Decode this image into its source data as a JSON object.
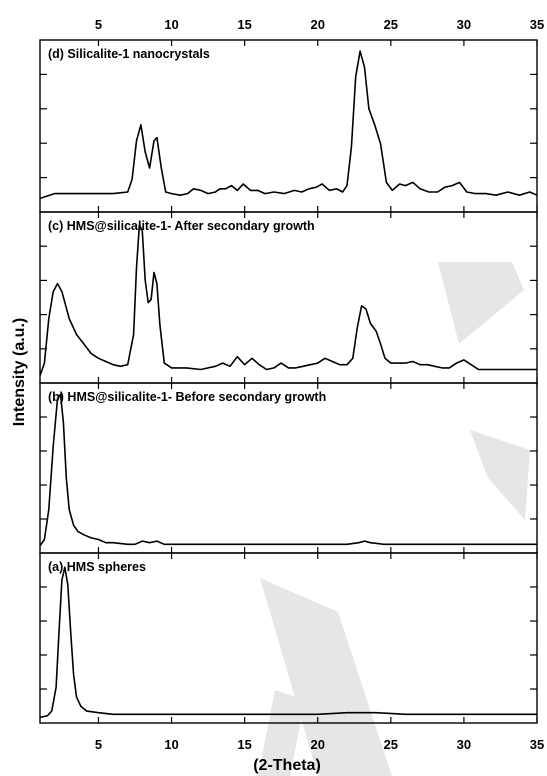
{
  "chart_data": {
    "type": "line",
    "xlabel": "(2-Theta)",
    "ylabel": "Intensity (a.u.)",
    "xlim": [
      1,
      35
    ],
    "x_ticks": [
      5,
      10,
      15,
      20,
      25,
      30,
      35
    ],
    "x_tick_labels": [
      "5",
      "10",
      "15",
      "20",
      "25",
      "30",
      "35"
    ],
    "panels": [
      {
        "label": "(d) Silicalite-1 nanocrystals",
        "ylim": [
          0,
          1
        ],
        "points": [
          [
            1.0,
            0.06
          ],
          [
            2.0,
            0.09
          ],
          [
            3.0,
            0.09
          ],
          [
            4.0,
            0.09
          ],
          [
            5.0,
            0.09
          ],
          [
            6.0,
            0.09
          ],
          [
            7.0,
            0.1
          ],
          [
            7.3,
            0.18
          ],
          [
            7.6,
            0.42
          ],
          [
            7.9,
            0.52
          ],
          [
            8.2,
            0.35
          ],
          [
            8.5,
            0.25
          ],
          [
            8.8,
            0.42
          ],
          [
            9.0,
            0.44
          ],
          [
            9.3,
            0.25
          ],
          [
            9.6,
            0.1
          ],
          [
            10.0,
            0.09
          ],
          [
            10.6,
            0.08
          ],
          [
            11.1,
            0.09
          ],
          [
            11.5,
            0.12
          ],
          [
            12.0,
            0.11
          ],
          [
            12.5,
            0.09
          ],
          [
            13.0,
            0.1
          ],
          [
            13.3,
            0.12
          ],
          [
            13.7,
            0.12
          ],
          [
            14.1,
            0.14
          ],
          [
            14.5,
            0.11
          ],
          [
            14.9,
            0.15
          ],
          [
            15.4,
            0.11
          ],
          [
            15.9,
            0.11
          ],
          [
            16.4,
            0.09
          ],
          [
            17.0,
            0.1
          ],
          [
            17.7,
            0.09
          ],
          [
            18.4,
            0.11
          ],
          [
            18.9,
            0.1
          ],
          [
            19.4,
            0.12
          ],
          [
            19.9,
            0.13
          ],
          [
            20.3,
            0.15
          ],
          [
            20.8,
            0.11
          ],
          [
            21.3,
            0.12
          ],
          [
            21.7,
            0.1
          ],
          [
            22.0,
            0.14
          ],
          [
            22.3,
            0.38
          ],
          [
            22.6,
            0.82
          ],
          [
            22.9,
            0.98
          ],
          [
            23.2,
            0.88
          ],
          [
            23.5,
            0.62
          ],
          [
            23.9,
            0.52
          ],
          [
            24.3,
            0.4
          ],
          [
            24.7,
            0.16
          ],
          [
            25.1,
            0.11
          ],
          [
            25.6,
            0.15
          ],
          [
            26.0,
            0.14
          ],
          [
            26.5,
            0.16
          ],
          [
            27.0,
            0.12
          ],
          [
            27.6,
            0.1
          ],
          [
            28.2,
            0.1
          ],
          [
            28.7,
            0.13
          ],
          [
            29.2,
            0.14
          ],
          [
            29.7,
            0.16
          ],
          [
            30.2,
            0.1
          ],
          [
            30.8,
            0.09
          ],
          [
            31.5,
            0.09
          ],
          [
            32.2,
            0.08
          ],
          [
            33.0,
            0.1
          ],
          [
            33.8,
            0.08
          ],
          [
            34.5,
            0.1
          ],
          [
            35.0,
            0.08
          ]
        ]
      },
      {
        "label": "(c) HMS@silicalite-1- After secondary growth",
        "ylim": [
          0,
          1
        ],
        "points": [
          [
            1.0,
            0.02
          ],
          [
            1.3,
            0.1
          ],
          [
            1.6,
            0.38
          ],
          [
            1.9,
            0.55
          ],
          [
            2.2,
            0.6
          ],
          [
            2.5,
            0.55
          ],
          [
            3.0,
            0.38
          ],
          [
            3.5,
            0.28
          ],
          [
            4.0,
            0.22
          ],
          [
            4.5,
            0.16
          ],
          [
            5.0,
            0.13
          ],
          [
            5.5,
            0.11
          ],
          [
            6.0,
            0.09
          ],
          [
            6.5,
            0.08
          ],
          [
            7.0,
            0.09
          ],
          [
            7.4,
            0.28
          ],
          [
            7.6,
            0.7
          ],
          [
            7.8,
            0.97
          ],
          [
            8.0,
            0.93
          ],
          [
            8.2,
            0.62
          ],
          [
            8.4,
            0.48
          ],
          [
            8.6,
            0.5
          ],
          [
            8.8,
            0.67
          ],
          [
            9.0,
            0.6
          ],
          [
            9.2,
            0.34
          ],
          [
            9.5,
            0.1
          ],
          [
            10.0,
            0.07
          ],
          [
            11.0,
            0.07
          ],
          [
            12.0,
            0.06
          ],
          [
            12.5,
            0.07
          ],
          [
            13.0,
            0.08
          ],
          [
            13.5,
            0.1
          ],
          [
            14.0,
            0.08
          ],
          [
            14.5,
            0.14
          ],
          [
            15.0,
            0.09
          ],
          [
            15.5,
            0.13
          ],
          [
            16.0,
            0.09
          ],
          [
            16.5,
            0.06
          ],
          [
            17.0,
            0.07
          ],
          [
            17.5,
            0.1
          ],
          [
            18.0,
            0.07
          ],
          [
            18.5,
            0.07
          ],
          [
            19.0,
            0.08
          ],
          [
            19.5,
            0.09
          ],
          [
            20.0,
            0.1
          ],
          [
            20.5,
            0.13
          ],
          [
            21.0,
            0.11
          ],
          [
            21.5,
            0.09
          ],
          [
            22.0,
            0.09
          ],
          [
            22.4,
            0.13
          ],
          [
            22.7,
            0.32
          ],
          [
            23.0,
            0.46
          ],
          [
            23.3,
            0.44
          ],
          [
            23.6,
            0.35
          ],
          [
            24.0,
            0.3
          ],
          [
            24.3,
            0.22
          ],
          [
            24.6,
            0.13
          ],
          [
            25.0,
            0.1
          ],
          [
            25.5,
            0.1
          ],
          [
            26.0,
            0.1
          ],
          [
            26.5,
            0.11
          ],
          [
            27.0,
            0.09
          ],
          [
            27.5,
            0.09
          ],
          [
            28.0,
            0.08
          ],
          [
            28.5,
            0.07
          ],
          [
            29.0,
            0.07
          ],
          [
            29.5,
            0.1
          ],
          [
            30.0,
            0.12
          ],
          [
            30.5,
            0.09
          ],
          [
            31.0,
            0.06
          ],
          [
            32.0,
            0.06
          ],
          [
            33.0,
            0.06
          ],
          [
            34.0,
            0.06
          ],
          [
            35.0,
            0.06
          ]
        ]
      },
      {
        "label": "(b) HMS@silicalite-1- Before secondary growth",
        "ylim": [
          0,
          1
        ],
        "points": [
          [
            1.0,
            0.02
          ],
          [
            1.3,
            0.06
          ],
          [
            1.6,
            0.25
          ],
          [
            1.9,
            0.65
          ],
          [
            2.2,
            0.95
          ],
          [
            2.4,
            0.98
          ],
          [
            2.6,
            0.8
          ],
          [
            2.8,
            0.45
          ],
          [
            3.0,
            0.25
          ],
          [
            3.3,
            0.15
          ],
          [
            3.6,
            0.11
          ],
          [
            4.0,
            0.09
          ],
          [
            4.5,
            0.07
          ],
          [
            5.0,
            0.06
          ],
          [
            5.5,
            0.04
          ],
          [
            6.0,
            0.04
          ],
          [
            7.0,
            0.03
          ],
          [
            7.5,
            0.03
          ],
          [
            8.0,
            0.05
          ],
          [
            8.5,
            0.04
          ],
          [
            9.0,
            0.05
          ],
          [
            9.5,
            0.03
          ],
          [
            10.0,
            0.03
          ],
          [
            12.0,
            0.03
          ],
          [
            14.0,
            0.03
          ],
          [
            16.0,
            0.03
          ],
          [
            18.0,
            0.03
          ],
          [
            20.0,
            0.03
          ],
          [
            22.0,
            0.03
          ],
          [
            22.8,
            0.04
          ],
          [
            23.2,
            0.05
          ],
          [
            23.6,
            0.04
          ],
          [
            24.5,
            0.03
          ],
          [
            26.0,
            0.03
          ],
          [
            28.0,
            0.03
          ],
          [
            30.0,
            0.03
          ],
          [
            32.0,
            0.03
          ],
          [
            35.0,
            0.03
          ]
        ]
      },
      {
        "label": "(a) HMS spheres",
        "ylim": [
          0,
          1
        ],
        "points": [
          [
            1.0,
            0.01
          ],
          [
            1.5,
            0.02
          ],
          [
            1.8,
            0.05
          ],
          [
            2.1,
            0.2
          ],
          [
            2.3,
            0.55
          ],
          [
            2.5,
            0.88
          ],
          [
            2.7,
            0.96
          ],
          [
            2.9,
            0.85
          ],
          [
            3.1,
            0.55
          ],
          [
            3.3,
            0.28
          ],
          [
            3.5,
            0.14
          ],
          [
            3.8,
            0.08
          ],
          [
            4.2,
            0.05
          ],
          [
            5.0,
            0.04
          ],
          [
            6.0,
            0.03
          ],
          [
            8.0,
            0.03
          ],
          [
            10.0,
            0.03
          ],
          [
            12.0,
            0.03
          ],
          [
            14.0,
            0.03
          ],
          [
            16.0,
            0.03
          ],
          [
            18.0,
            0.03
          ],
          [
            20.0,
            0.03
          ],
          [
            22.0,
            0.04
          ],
          [
            24.0,
            0.04
          ],
          [
            26.0,
            0.03
          ],
          [
            28.0,
            0.03
          ],
          [
            30.0,
            0.03
          ],
          [
            32.0,
            0.03
          ],
          [
            35.0,
            0.03
          ]
        ]
      }
    ]
  }
}
